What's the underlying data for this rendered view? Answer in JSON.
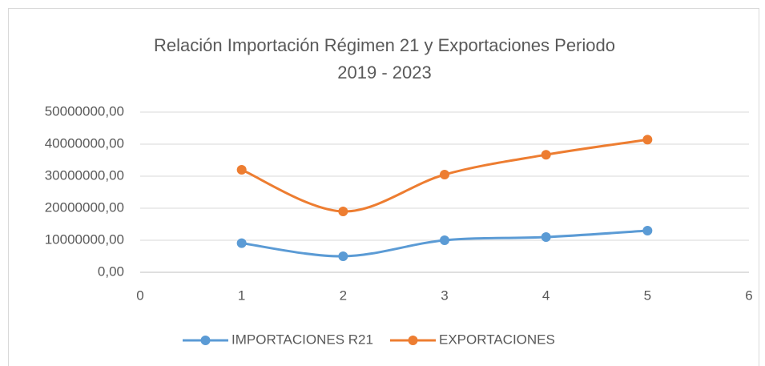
{
  "chart_data": {
    "type": "line",
    "title": "Relación Importación Régimen 21 y Exportaciones Periodo 2019 - 2023",
    "x": [
      1,
      2,
      3,
      4,
      5
    ],
    "series": [
      {
        "name": "IMPORTACIONES R21",
        "color": "#5b9bd5",
        "values": [
          9100000,
          5000000,
          10000000,
          11000000,
          13000000
        ]
      },
      {
        "name": "EXPORTACIONES",
        "color": "#ed7d31",
        "values": [
          32000000,
          19000000,
          30500000,
          36700000,
          41400000
        ]
      }
    ],
    "xlim": [
      0,
      6
    ],
    "xticks": [
      0,
      1,
      2,
      3,
      4,
      5,
      6
    ],
    "ylim": [
      0,
      50000000
    ],
    "yticks": [
      {
        "value": 0,
        "label": "0,00"
      },
      {
        "value": 10000000,
        "label": "10000000,00"
      },
      {
        "value": 20000000,
        "label": "20000000,00"
      },
      {
        "value": 30000000,
        "label": "30000000,00"
      },
      {
        "value": 40000000,
        "label": "40000000,00"
      },
      {
        "value": 50000000,
        "label": "50000000,00"
      }
    ],
    "grid": true,
    "smooth": true,
    "legend": "bottom"
  }
}
